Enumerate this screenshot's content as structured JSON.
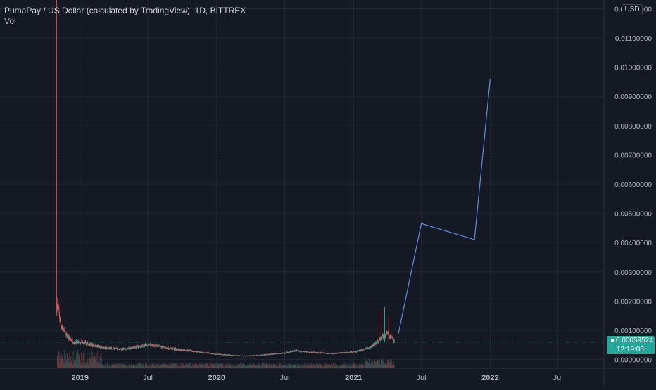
{
  "header": {
    "title": "PumaPay / US Dollar (calculated by TradingView), 1D, BITTREX",
    "volume_label": "Vol",
    "currency": "USD"
  },
  "last_price": {
    "value": "0.00059524",
    "countdown": "12:19:08"
  },
  "colors": {
    "background": "#151924",
    "grid": "#232632",
    "axis_text": "#b2b5be",
    "up": "#26a69a",
    "down": "#ef5350",
    "drawing": "#5b8def",
    "price_line": "#26a69a"
  },
  "chart_data": {
    "type": "candlestick",
    "title": "PumaPay / US Dollar (calculated by TradingView), 1D, BITTREX",
    "x_axis": {
      "ticks": [
        "2019",
        "Jul",
        "2020",
        "Jul",
        "2021",
        "Jul",
        "2022",
        "Jul"
      ],
      "tick_dates": [
        "2019-01-01",
        "2019-07-01",
        "2020-01-01",
        "2020-07-01",
        "2021-01-01",
        "2021-07-01",
        "2022-01-01",
        "2022-07-01"
      ],
      "range": [
        "2018-06-01",
        "2022-11-01"
      ]
    },
    "y_axis": {
      "ticks": [
        "0.01200000",
        "0.01100000",
        "0.01000000",
        "0.00900000",
        "0.00800000",
        "0.00700000",
        "0.00600000",
        "0.00500000",
        "0.00400000",
        "0.00300000",
        "0.00200000",
        "0.00100000",
        "-0.00000000"
      ],
      "tick_values": [
        0.012,
        0.011,
        0.01,
        0.009,
        0.008,
        0.007,
        0.006,
        0.005,
        0.004,
        0.003,
        0.002,
        0.001,
        0.0
      ],
      "range": [
        -0.0003,
        0.0123
      ]
    },
    "price_trend": [
      {
        "date": "2018-11-01",
        "value": 0.0019
      },
      {
        "date": "2018-11-10",
        "value": 0.0012
      },
      {
        "date": "2018-11-25",
        "value": 0.0008
      },
      {
        "date": "2018-12-15",
        "value": 0.0006
      },
      {
        "date": "2019-01-15",
        "value": 0.00055
      },
      {
        "date": "2019-03-01",
        "value": 0.0004
      },
      {
        "date": "2019-05-01",
        "value": 0.00035
      },
      {
        "date": "2019-07-01",
        "value": 0.0005
      },
      {
        "date": "2019-08-15",
        "value": 0.0004
      },
      {
        "date": "2019-10-15",
        "value": 0.0003
      },
      {
        "date": "2020-01-01",
        "value": 0.00018
      },
      {
        "date": "2020-03-15",
        "value": 0.00012
      },
      {
        "date": "2020-05-01",
        "value": 0.00015
      },
      {
        "date": "2020-07-01",
        "value": 0.00022
      },
      {
        "date": "2020-08-01",
        "value": 0.0003
      },
      {
        "date": "2020-09-01",
        "value": 0.00025
      },
      {
        "date": "2020-11-01",
        "value": 0.0002
      },
      {
        "date": "2021-01-01",
        "value": 0.00025
      },
      {
        "date": "2021-02-15",
        "value": 0.0004
      },
      {
        "date": "2021-03-15",
        "value": 0.0007
      },
      {
        "date": "2021-04-01",
        "value": 0.0009
      },
      {
        "date": "2021-04-20",
        "value": 0.0006
      }
    ],
    "drawing_projection": [
      {
        "date": "2021-05-01",
        "value": 0.0009
      },
      {
        "date": "2021-07-01",
        "value": 0.00465
      },
      {
        "date": "2021-11-20",
        "value": 0.0041
      },
      {
        "date": "2022-01-01",
        "value": 0.0096
      }
    ],
    "last_price": 0.00059524,
    "grid": true
  }
}
